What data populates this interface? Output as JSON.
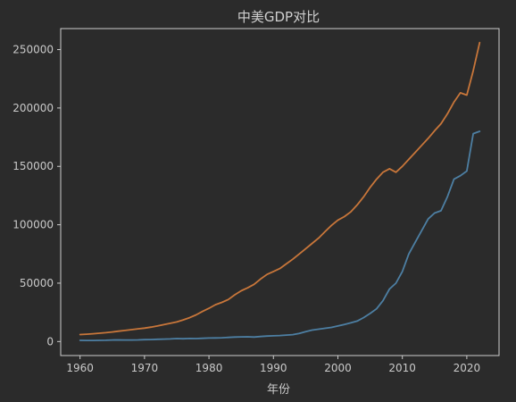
{
  "chart_data": {
    "type": "line",
    "title": "中美GDP对比",
    "xlabel": "年份",
    "ylabel": "",
    "xlim": [
      1957,
      2025
    ],
    "ylim": [
      -12000,
      268000
    ],
    "xticks": [
      1960,
      1970,
      1980,
      1990,
      2000,
      2010,
      2020
    ],
    "yticks": [
      0,
      50000,
      100000,
      150000,
      200000,
      250000
    ],
    "grid": false,
    "legend": "none",
    "colors": {
      "background": "#2b2b2b",
      "axes": "#cccccc",
      "text": "#c9c9c9"
    },
    "series": [
      {
        "color": "#c8763a",
        "x": [
          1960,
          1961,
          1962,
          1963,
          1964,
          1965,
          1966,
          1967,
          1968,
          1969,
          1970,
          1971,
          1972,
          1973,
          1974,
          1975,
          1976,
          1977,
          1978,
          1979,
          1980,
          1981,
          1982,
          1983,
          1984,
          1985,
          1986,
          1987,
          1988,
          1989,
          1990,
          1991,
          1992,
          1993,
          1994,
          1995,
          1996,
          1997,
          1998,
          1999,
          2000,
          2001,
          2002,
          2003,
          2004,
          2005,
          2006,
          2007,
          2008,
          2009,
          2010,
          2011,
          2012,
          2013,
          2014,
          2015,
          2016,
          2017,
          2018,
          2019,
          2020,
          2021,
          2022
        ],
        "y": [
          6000,
          6300,
          6700,
          7100,
          7600,
          8200,
          8900,
          9500,
          10200,
          10900,
          11500,
          12300,
          13300,
          14500,
          15600,
          16800,
          18500,
          20400,
          22800,
          25800,
          28500,
          31500,
          33500,
          36000,
          40000,
          43500,
          46000,
          49000,
          53500,
          57500,
          60000,
          62500,
          66500,
          70500,
          75000,
          79500,
          84000,
          88500,
          94000,
          99500,
          104000,
          107000,
          111000,
          117000,
          124000,
          132000,
          139000,
          145000,
          148000,
          145000,
          150000,
          156000,
          162000,
          168000,
          174000,
          180500,
          186500,
          195000,
          205000,
          213000,
          211000,
          232000,
          256000
        ]
      },
      {
        "color": "#4d7fa3",
        "x": [
          1960,
          1961,
          1962,
          1963,
          1964,
          1965,
          1966,
          1967,
          1968,
          1969,
          1970,
          1971,
          1972,
          1973,
          1974,
          1975,
          1976,
          1977,
          1978,
          1979,
          1980,
          1981,
          1982,
          1983,
          1984,
          1985,
          1986,
          1987,
          1988,
          1989,
          1990,
          1991,
          1992,
          1993,
          1994,
          1995,
          1996,
          1997,
          1998,
          1999,
          2000,
          2001,
          2002,
          2003,
          2004,
          2005,
          2006,
          2007,
          2008,
          2009,
          2010,
          2011,
          2012,
          2013,
          2014,
          2015,
          2016,
          2017,
          2018,
          2019,
          2020,
          2021,
          2022
        ],
        "y": [
          1000,
          900,
          900,
          1000,
          1100,
          1300,
          1400,
          1300,
          1300,
          1400,
          1600,
          1700,
          1900,
          2100,
          2200,
          2500,
          2400,
          2600,
          2500,
          2800,
          3000,
          3100,
          3200,
          3500,
          3800,
          4000,
          4100,
          3800,
          4300,
          4700,
          4900,
          5100,
          5500,
          5900,
          7000,
          8500,
          9800,
          10600,
          11300,
          12100,
          13300,
          14600,
          16000,
          17500,
          20500,
          24000,
          28000,
          35000,
          45000,
          50000,
          60000,
          75000,
          85000,
          95000,
          105000,
          110000,
          112000,
          124000,
          139000,
          142000,
          146000,
          178000,
          180000
        ]
      }
    ]
  }
}
